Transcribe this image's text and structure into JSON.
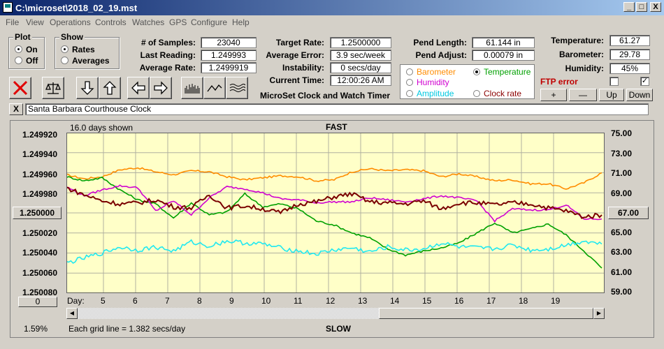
{
  "window": {
    "title": "C:\\microset\\2018_02_19.mst",
    "btn_min": "_",
    "btn_max": "□",
    "btn_close": "X"
  },
  "menu": [
    "File",
    "View",
    "Operations",
    "Controls",
    "Watches",
    "GPS",
    "Configure",
    "Help"
  ],
  "plot_group": {
    "title": "Plot",
    "on": "On",
    "off": "Off",
    "selected": "On"
  },
  "show_group": {
    "title": "Show",
    "rates": "Rates",
    "averages": "Averages",
    "selected": "Rates"
  },
  "stats": {
    "samples_label": "# of Samples:",
    "samples": "23040",
    "last_reading_label": "Last Reading:",
    "last_reading": "1.249993",
    "average_rate_label": "Average Rate:",
    "average_rate": "1.2499919",
    "target_rate_label": "Target Rate:",
    "target_rate": "1.2500000",
    "average_error_label": "Average Error:",
    "average_error": "3.9 sec/week",
    "instability_label": "Instability:",
    "instability": "0 secs/day",
    "current_time_label": "Current Time:",
    "current_time": "12:00:26 AM",
    "app_name": "MicroSet Clock and Watch Timer",
    "pend_length_label": "Pend Length:",
    "pend_length": "61.144 in",
    "pend_adjust_label": "Pend Adjust:",
    "pend_adjust": "0.00079 in"
  },
  "env": {
    "temperature_label": "Temperature:",
    "temperature": "61.27",
    "barometer_label": "Barometer:",
    "barometer": "29.78",
    "humidity_label": "Humidity:",
    "humidity": "45%",
    "ftp_error": "FTP error",
    "ftp_checkbox_1": "",
    "ftp_checkbox_2": "✓"
  },
  "plot_options": [
    {
      "label": "Barometer",
      "color": "#ff8c00",
      "selected": false
    },
    {
      "label": "Temperature",
      "color": "#00a000",
      "selected": true
    },
    {
      "label": "Humidity",
      "color": "#d000d0",
      "selected": false
    },
    {
      "label": "Amplitude",
      "color": "#00c8e0",
      "selected": false
    },
    {
      "label": "Clock rate",
      "color": "#8b0000",
      "selected": false
    }
  ],
  "scale_buttons": {
    "plus": "+",
    "minus": "—",
    "up": "Up",
    "down": "Down"
  },
  "clock_name": "Santa Barbara Courthouse Clock",
  "clock_clear": "X",
  "chart": {
    "days_shown": "16.0 days shown",
    "top_label": "FAST",
    "bottom_label": "SLOW",
    "center_button": "1.250000",
    "right_center_button": "67.00",
    "left_zero_button": "0",
    "day_prefix": "Day:",
    "grid_note": "Each grid line = 1.382 secs/day",
    "percent": "1.59%"
  },
  "chart_data": {
    "type": "line",
    "left_axis_ticks": [
      "1.249920",
      "1.249940",
      "1.249960",
      "1.249980",
      "1.250000",
      "1.250020",
      "1.250040",
      "1.250060",
      "1.250080"
    ],
    "right_axis_ticks": [
      "75.00",
      "73.00",
      "71.00",
      "69.00",
      "67.00",
      "65.00",
      "63.00",
      "61.00",
      "59.00"
    ],
    "x_ticks": [
      "5",
      "6",
      "7",
      "8",
      "9",
      "10",
      "11",
      "12",
      "13",
      "14",
      "15",
      "16",
      "17",
      "18",
      "19"
    ],
    "series": [
      {
        "name": "Barometer",
        "color": "#ff8c00",
        "values": [
          70.8,
          70.4,
          70.6,
          71.3,
          71.5,
          71.1,
          70.8,
          71.2,
          71.1,
          70.6,
          70.3,
          70.5,
          70.7,
          70.6,
          70.2,
          70.3,
          71.1,
          71.4,
          71.2,
          71.3,
          71.2,
          70.6,
          70.9,
          70.6,
          70.2,
          70.3,
          69.9,
          69.9,
          69.4,
          70.0,
          71.0
        ]
      },
      {
        "name": "Temperature",
        "color": "#00a000",
        "values": [
          70.6,
          70.2,
          70.5,
          69.3,
          68.3,
          67.9,
          66.5,
          68.0,
          66.8,
          67.1,
          68.9,
          67.6,
          67.9,
          67.4,
          66.2,
          65.8,
          65.0,
          64.5,
          63.4,
          62.8,
          63.2,
          63.5,
          64.0,
          65.0,
          66.0,
          65.0,
          65.4,
          65.9,
          64.8,
          63.2,
          61.5
        ]
      },
      {
        "name": "Humidity",
        "color": "#d000d0",
        "values": [
          69.6,
          68.7,
          69.3,
          69.7,
          69.5,
          67.2,
          68.2,
          66.8,
          68.5,
          69.6,
          69.4,
          69.0,
          68.4,
          68.3,
          68.0,
          68.1,
          68.1,
          68.5,
          68.3,
          68.1,
          68.4,
          68.7,
          68.5,
          68.2,
          66.2,
          67.4,
          67.3,
          67.3,
          67.8,
          66.4,
          66.4
        ]
      },
      {
        "name": "Clock rate",
        "color": "#7a0000",
        "values": [
          69.5,
          68.8,
          68.2,
          67.9,
          68.0,
          68.3,
          67.6,
          67.5,
          68.8,
          67.5,
          67.7,
          67.4,
          67.0,
          67.9,
          68.1,
          68.6,
          68.9,
          68.1,
          68.0,
          67.9,
          68.2,
          67.4,
          68.0,
          68.0,
          67.8,
          68.0,
          67.9,
          67.5,
          67.2,
          66.6,
          66.8
        ]
      },
      {
        "name": "Amplitude",
        "color": "#20e8f0",
        "values": [
          62.0,
          62.5,
          63.0,
          63.6,
          63.3,
          63.6,
          63.2,
          64.1,
          63.7,
          64.2,
          64.0,
          63.9,
          63.5,
          63.2,
          62.9,
          63.3,
          63.5,
          63.1,
          63.6,
          63.3,
          63.4,
          64.0,
          63.6,
          63.5,
          63.4,
          63.8,
          63.3,
          63.4,
          63.8,
          64.2,
          63.9
        ]
      }
    ]
  }
}
